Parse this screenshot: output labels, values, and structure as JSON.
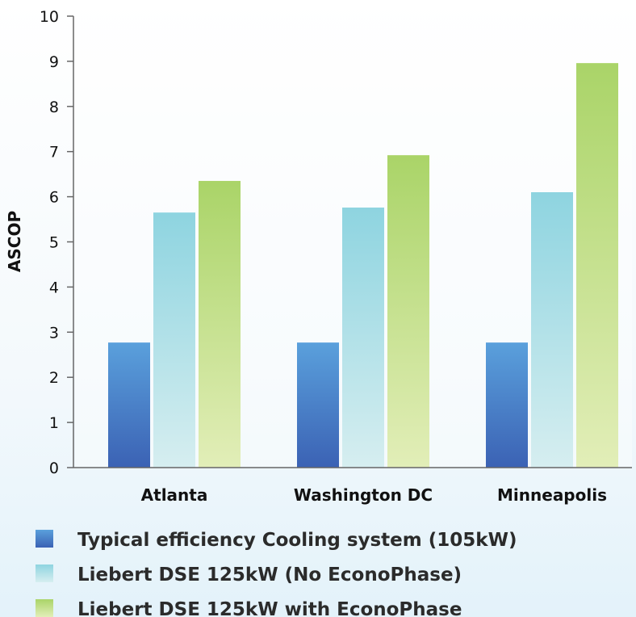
{
  "chart_data": {
    "type": "bar",
    "title": "",
    "xlabel": "",
    "ylabel": "ASCOP",
    "ylim": [
      0,
      10
    ],
    "yticks": [
      0,
      1,
      2,
      3,
      4,
      5,
      6,
      7,
      8,
      9,
      10
    ],
    "grid": false,
    "legend_position": "bottom",
    "categories": [
      "Atlanta",
      "Washington DC",
      "Minneapolis"
    ],
    "series": [
      {
        "name": "Typical efficiency Cooling system (105kW)",
        "values": [
          2.77,
          2.77,
          2.77
        ],
        "color_top": "#5aa0dc",
        "color_bottom": "#3b62b4"
      },
      {
        "name": "Liebert DSE 125kW (No EconoPhase)",
        "values": [
          5.65,
          5.76,
          6.1
        ],
        "color_top": "#8ed4e0",
        "color_bottom": "#d6eef0"
      },
      {
        "name": "Liebert DSE 125kW with EconoPhase",
        "values": [
          6.35,
          6.92,
          8.96
        ],
        "color_top": "#aad468",
        "color_bottom": "#e2eeb8"
      }
    ]
  }
}
